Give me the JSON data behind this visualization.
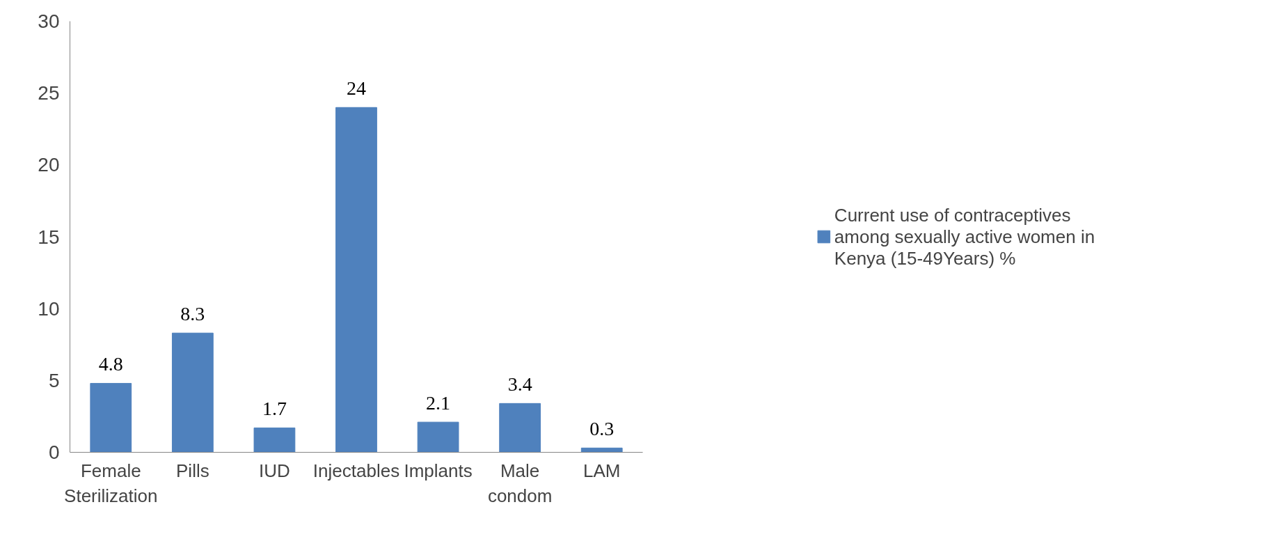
{
  "chart_data": {
    "type": "bar",
    "categories": [
      "Female Sterilization",
      "Pills",
      "IUD",
      "Injectables",
      "Implants",
      "Male condom",
      "LAM"
    ],
    "series": [
      {
        "name": "Current use of contraceptives among sexually active women in Kenya (15-49Years) %",
        "color": "#4f81bd",
        "values": [
          4.8,
          8.3,
          1.7,
          24,
          2.1,
          3.4,
          0.3
        ]
      }
    ],
    "ylim": [
      0,
      30
    ],
    "yticks": [
      0,
      5,
      10,
      15,
      20,
      25,
      30
    ],
    "data_labels": true,
    "grid": false,
    "legend": "right"
  }
}
